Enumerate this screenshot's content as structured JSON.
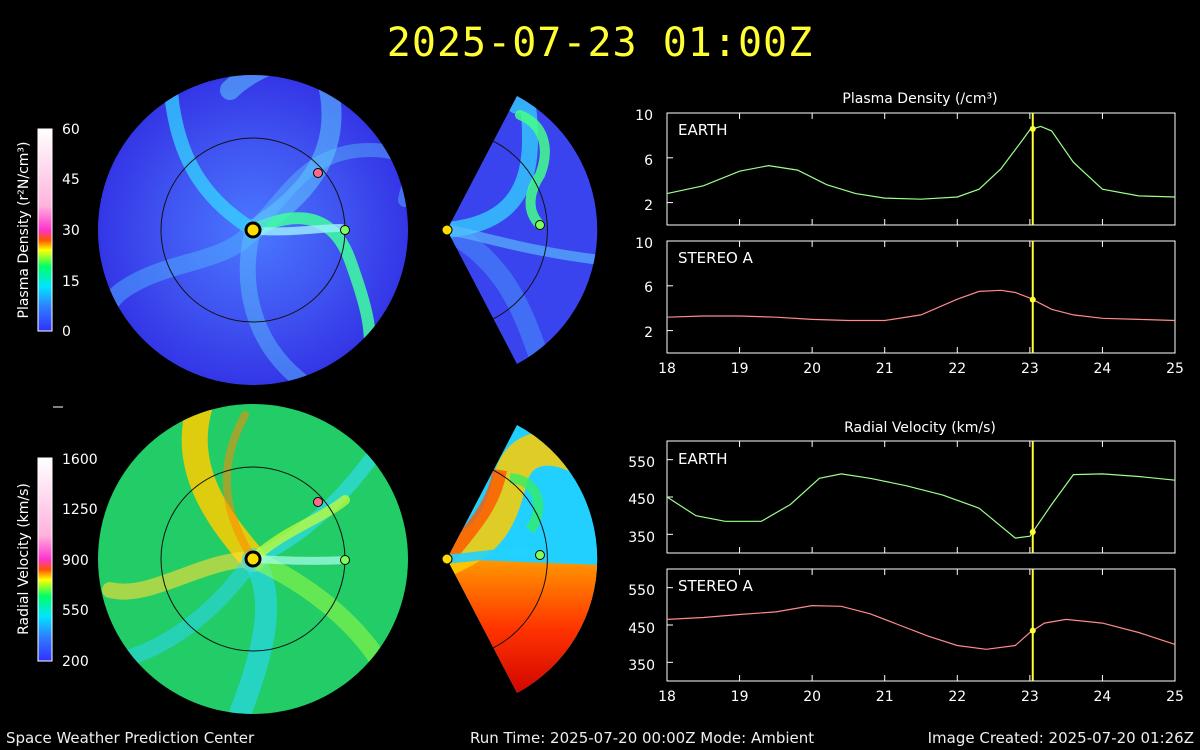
{
  "header": {
    "datetime": "2025-07-23 01:00Z"
  },
  "footer": {
    "organization": "Space Weather Prediction Center",
    "run_time": "Run Time: 2025-07-20 00:00Z  Mode: Ambient",
    "image_created": "Image Created: 2025-07-20 01:26Z"
  },
  "colorbars": [
    {
      "label": "Plasma Density (r²N/cm³)",
      "ticks": [
        "60",
        "45",
        "30",
        "15",
        "0"
      ]
    },
    {
      "label": "Radial Velocity (km/s)",
      "ticks": [
        "1600",
        "1250",
        "900",
        "550",
        "200"
      ]
    }
  ],
  "colors": {
    "earth_line": "#9cff8c",
    "stereo_line": "#ff8a8a",
    "earth_marker": "#7fff5a",
    "stereo_marker": "#ff6a8a",
    "current_time_line": "#ffff33",
    "title": "#ffff33",
    "sun": "#ffdd00"
  },
  "chart_data": [
    {
      "type": "line",
      "title": "Plasma Density (/cm³)",
      "panel": "EARTH",
      "x": [
        18,
        18.5,
        19,
        19.4,
        19.8,
        20.2,
        20.6,
        21,
        21.5,
        22,
        22.3,
        22.6,
        22.9,
        23.0,
        23.15,
        23.3,
        23.6,
        24,
        24.5,
        25
      ],
      "y": [
        2.8,
        3.5,
        4.8,
        5.3,
        4.9,
        3.6,
        2.8,
        2.4,
        2.3,
        2.5,
        3.2,
        5.0,
        7.6,
        8.5,
        8.8,
        8.4,
        5.6,
        3.2,
        2.6,
        2.5
      ],
      "ylim": [
        0,
        10
      ],
      "yticks": [
        2,
        6,
        10
      ],
      "xticks": [
        18,
        19,
        20,
        21,
        22,
        23,
        24,
        25
      ]
    },
    {
      "type": "line",
      "panel": "STEREO A",
      "x": [
        18,
        18.5,
        19,
        19.5,
        20,
        20.5,
        21,
        21.5,
        22,
        22.3,
        22.6,
        22.8,
        23,
        23.3,
        23.6,
        24,
        24.5,
        25
      ],
      "y": [
        3.2,
        3.3,
        3.3,
        3.2,
        3.0,
        2.9,
        2.9,
        3.4,
        4.8,
        5.5,
        5.6,
        5.4,
        4.9,
        3.9,
        3.4,
        3.1,
        3.0,
        2.9
      ],
      "ylim": [
        0,
        10
      ],
      "yticks": [
        2,
        6,
        10
      ],
      "xticks": [
        18,
        19,
        20,
        21,
        22,
        23,
        24,
        25
      ]
    },
    {
      "type": "line",
      "title": "Radial Velocity (km/s)",
      "panel": "EARTH",
      "x": [
        18,
        18.4,
        18.8,
        19.3,
        19.7,
        20.1,
        20.4,
        20.8,
        21.3,
        21.8,
        22.3,
        22.8,
        23.0,
        23.3,
        23.6,
        24,
        24.5,
        25
      ],
      "y": [
        450,
        400,
        385,
        385,
        430,
        500,
        512,
        500,
        480,
        455,
        420,
        340,
        345,
        430,
        510,
        512,
        505,
        495
      ],
      "ylim": [
        300,
        600
      ],
      "yticks": [
        350,
        450,
        550
      ],
      "xticks": [
        18,
        19,
        20,
        21,
        22,
        23,
        24,
        25
      ]
    },
    {
      "type": "line",
      "panel": "STEREO A",
      "x": [
        18,
        18.5,
        19,
        19.5,
        20,
        20.4,
        20.8,
        21.2,
        21.6,
        22,
        22.4,
        22.8,
        23,
        23.2,
        23.5,
        24,
        24.5,
        25
      ],
      "y": [
        465,
        470,
        478,
        485,
        502,
        500,
        480,
        450,
        420,
        395,
        385,
        395,
        430,
        455,
        465,
        455,
        430,
        398
      ],
      "ylim": [
        300,
        600
      ],
      "yticks": [
        350,
        450,
        550
      ],
      "xticks": [
        18,
        19,
        20,
        21,
        22,
        23,
        24,
        25
      ]
    }
  ],
  "current_time_x": 23.04
}
